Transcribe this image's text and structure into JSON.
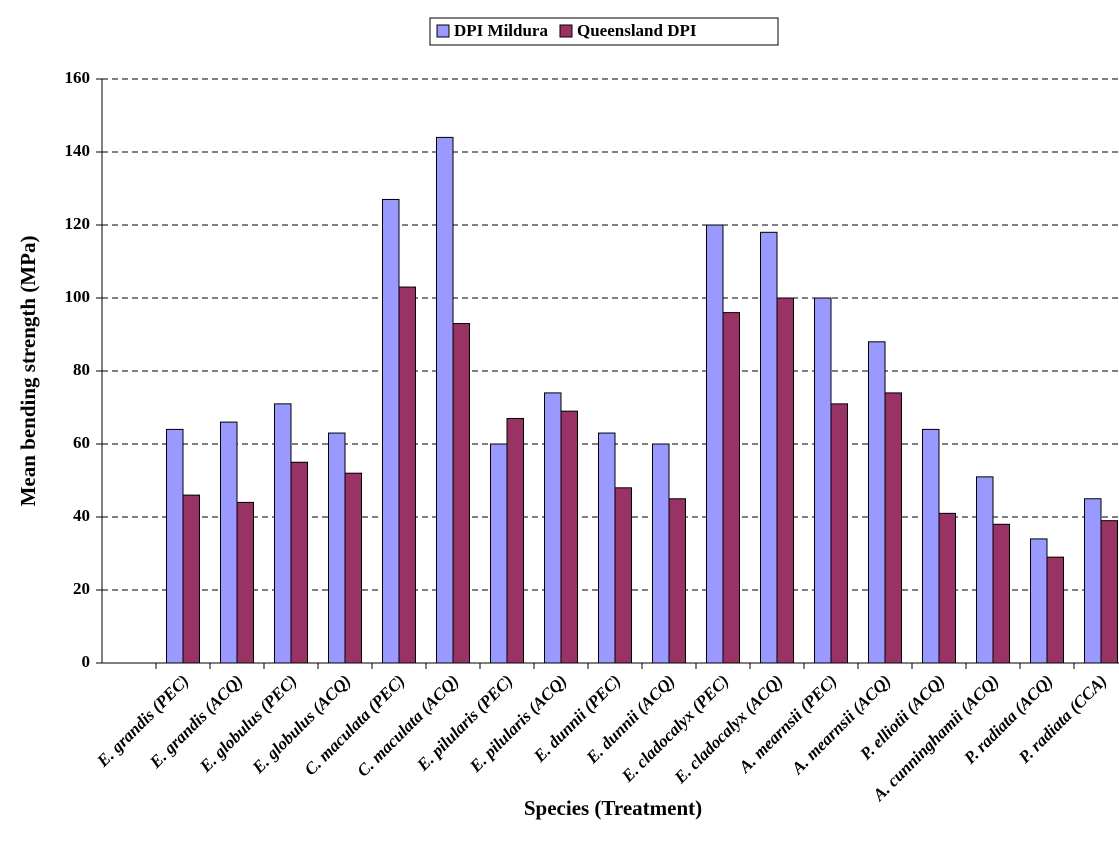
{
  "chart_data": {
    "type": "bar",
    "xlabel": "Species (Treatment)",
    "ylabel": "Mean bending strength (MPa)",
    "categories": [
      null,
      "E. grandis (PEC)",
      "E. grandis (ACQ)",
      "E. globulus (PEC)",
      "E. globulus (ACQ)",
      "C. maculata (PEC)",
      "C. maculata (ACQ)",
      "E. pilularis (PEC)",
      "E. pilularis (ACQ)",
      "E. dunnii (PEC)",
      "E. dunnii (ACQ)",
      "E. cladocalyx (PEC)",
      "E. cladocalyx (ACQ)",
      "A. mearnsii (PEC)",
      "A. mearnsii (ACQ)",
      "P. elliotii (ACQ)",
      "A. cunninghamii (ACQ)",
      "P. radiata (ACQ)",
      "P. radiata (CCA)"
    ],
    "series": [
      {
        "name": "DPI Mildura",
        "color": "#9999ff",
        "values": [
          null,
          64,
          66,
          71,
          63,
          127,
          144,
          60,
          74,
          63,
          60,
          120,
          118,
          100,
          88,
          64,
          51,
          34,
          45
        ]
      },
      {
        "name": "Queensland DPI",
        "color": "#993366",
        "values": [
          null,
          46,
          44,
          55,
          52,
          103,
          93,
          67,
          69,
          48,
          45,
          96,
          100,
          71,
          74,
          41,
          38,
          29,
          39
        ]
      }
    ],
    "ylim": [
      0,
      160
    ],
    "yticks": [
      0,
      20,
      40,
      60,
      80,
      100,
      120,
      140,
      160
    ],
    "grid": true,
    "legend": "top"
  }
}
